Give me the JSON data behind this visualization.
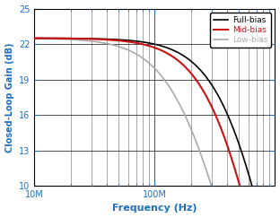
{
  "title": "",
  "xlabel": "Frequency (Hz)",
  "ylabel": "Closed-Loop Gain (dB)",
  "xmin": 10000000.0,
  "xmax": 1000000000.0,
  "ymin": 10,
  "ymax": 25,
  "yticks": [
    10,
    13,
    16,
    19,
    22,
    25
  ],
  "xtick_labels": [
    "10M",
    "100M"
  ],
  "xtick_positions": [
    10000000.0,
    100000000.0
  ],
  "legend_labels": [
    "Full-bias",
    "Mid-bias",
    "Low-bias"
  ],
  "full_bias_color": "#000000",
  "mid_bias_color": "#cc1111",
  "low_bias_color": "#aaaaaa",
  "flat_gain": 22.5,
  "full_bias_f3db": 480000000.0,
  "mid_bias_f3db": 380000000.0,
  "low_bias_f3db": 180000000.0,
  "full_bias_order": 2.8,
  "mid_bias_order": 2.8,
  "low_bias_order": 2.2,
  "background_color": "#ffffff",
  "grid_color": "#000000",
  "label_color": "#1f6fbf",
  "legend_text_colors": [
    "#000000",
    "#cc1111",
    "#aaaaaa"
  ],
  "legend_title_colors": [
    "#000000",
    "#cc1111",
    "#888888"
  ]
}
